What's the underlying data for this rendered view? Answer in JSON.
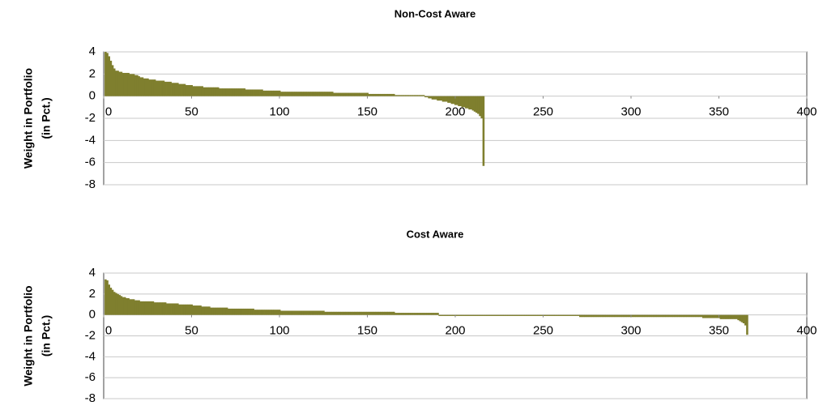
{
  "chart_data": [
    {
      "type": "bar",
      "title": "Non-Cost Aware",
      "ylabel": [
        "Weight in Portfolio",
        "(in Pct.)"
      ],
      "color": "#7f7f2e",
      "grid": true,
      "xlim": [
        0,
        400
      ],
      "xticks": [
        0,
        50,
        100,
        150,
        200,
        250,
        300,
        350,
        400
      ],
      "ylim": [
        -8,
        4
      ],
      "yticks": [
        -8,
        -6,
        -4,
        -2,
        0,
        2,
        4
      ],
      "x": [
        1,
        2,
        3,
        4,
        5,
        6,
        7,
        8,
        9,
        10,
        11,
        12,
        13,
        14,
        15,
        16,
        17,
        18,
        19,
        20,
        21,
        22,
        23,
        24,
        25,
        26,
        27,
        28,
        29,
        30,
        31,
        32,
        33,
        34,
        35,
        36,
        37,
        38,
        39,
        40,
        41,
        42,
        43,
        44,
        45,
        46,
        47,
        48,
        49,
        50,
        51,
        52,
        53,
        54,
        55,
        56,
        57,
        58,
        59,
        60,
        61,
        62,
        63,
        64,
        65,
        66,
        67,
        68,
        69,
        70,
        71,
        72,
        73,
        74,
        75,
        76,
        77,
        78,
        79,
        80,
        81,
        82,
        83,
        84,
        85,
        86,
        87,
        88,
        89,
        90,
        91,
        92,
        93,
        94,
        95,
        96,
        97,
        98,
        99,
        100,
        101,
        102,
        103,
        104,
        105,
        106,
        107,
        108,
        109,
        110,
        111,
        112,
        113,
        114,
        115,
        116,
        117,
        118,
        119,
        120,
        121,
        122,
        123,
        124,
        125,
        126,
        127,
        128,
        129,
        130,
        131,
        132,
        133,
        134,
        135,
        136,
        137,
        138,
        139,
        140,
        141,
        142,
        143,
        144,
        145,
        146,
        147,
        148,
        149,
        150,
        151,
        152,
        153,
        154,
        155,
        156,
        157,
        158,
        159,
        160,
        161,
        162,
        163,
        164,
        165,
        166,
        167,
        168,
        169,
        170,
        171,
        172,
        173,
        174,
        175,
        176,
        177,
        178,
        179,
        180,
        181,
        182,
        183,
        184,
        185,
        186,
        187,
        188,
        189,
        190,
        191,
        192,
        193,
        194,
        195,
        196,
        197,
        198,
        199,
        200,
        201,
        202,
        203,
        204,
        205,
        206,
        207,
        208,
        209,
        210,
        211,
        212,
        213,
        214,
        215,
        216
      ],
      "values": [
        4,
        3.9,
        3.6,
        3.2,
        2.8,
        2.5,
        2.3,
        2.3,
        2.2,
        2.2,
        2.1,
        2.1,
        2.1,
        2.1,
        2,
        2,
        2,
        1.9,
        1.9,
        1.8,
        1.7,
        1.7,
        1.6,
        1.6,
        1.6,
        1.5,
        1.5,
        1.5,
        1.5,
        1.4,
        1.4,
        1.4,
        1.4,
        1.4,
        1.3,
        1.3,
        1.3,
        1.3,
        1.2,
        1.2,
        1.2,
        1.2,
        1.1,
        1.1,
        1.1,
        1.1,
        1,
        1,
        1,
        1,
        0.9,
        0.9,
        0.9,
        0.9,
        0.9,
        0.9,
        0.8,
        0.8,
        0.8,
        0.8,
        0.8,
        0.8,
        0.8,
        0.8,
        0.8,
        0.7,
        0.7,
        0.7,
        0.7,
        0.7,
        0.7,
        0.7,
        0.7,
        0.7,
        0.7,
        0.7,
        0.7,
        0.7,
        0.7,
        0.7,
        0.6,
        0.6,
        0.6,
        0.6,
        0.6,
        0.6,
        0.6,
        0.6,
        0.6,
        0.6,
        0.5,
        0.5,
        0.5,
        0.5,
        0.5,
        0.5,
        0.5,
        0.5,
        0.5,
        0.5,
        0.4,
        0.4,
        0.4,
        0.4,
        0.4,
        0.4,
        0.4,
        0.4,
        0.4,
        0.4,
        0.4,
        0.4,
        0.4,
        0.4,
        0.4,
        0.4,
        0.4,
        0.4,
        0.4,
        0.4,
        0.4,
        0.4,
        0.4,
        0.4,
        0.4,
        0.4,
        0.4,
        0.4,
        0.4,
        0.4,
        0.3,
        0.3,
        0.3,
        0.3,
        0.3,
        0.3,
        0.3,
        0.3,
        0.3,
        0.3,
        0.3,
        0.3,
        0.3,
        0.3,
        0.3,
        0.3,
        0.3,
        0.3,
        0.3,
        0.3,
        0.2,
        0.2,
        0.2,
        0.2,
        0.2,
        0.2,
        0.2,
        0.2,
        0.2,
        0.2,
        0.2,
        0.2,
        0.2,
        0.2,
        0.2,
        0.1,
        0.1,
        0.1,
        0.1,
        0.1,
        0.1,
        0.1,
        0.1,
        0.1,
        0.1,
        0.1,
        0.1,
        0.1,
        0.1,
        0.1,
        0.1,
        0.1,
        -0.1,
        -0.1,
        -0.2,
        -0.2,
        -0.3,
        -0.3,
        -0.3,
        -0.4,
        -0.4,
        -0.4,
        -0.5,
        -0.5,
        -0.5,
        -0.6,
        -0.6,
        -0.7,
        -0.7,
        -0.8,
        -0.8,
        -0.9,
        -0.9,
        -1,
        -1,
        -1.1,
        -1.1,
        -1.2,
        -1.2,
        -1.3,
        -1.4,
        -1.5,
        -1.6,
        -1.8,
        -2,
        -6.3
      ]
    },
    {
      "type": "bar",
      "title": "Cost Aware",
      "ylabel": [
        "Weight in Portfolio",
        "(in Pct.)"
      ],
      "color": "#7f7f2e",
      "grid": true,
      "xlim": [
        0,
        400
      ],
      "xticks": [
        0,
        50,
        100,
        150,
        200,
        250,
        300,
        350,
        400
      ],
      "ylim": [
        -8,
        4
      ],
      "yticks": [
        -8,
        -6,
        -4,
        -2,
        0,
        2,
        4
      ],
      "x": [
        1,
        2,
        3,
        4,
        5,
        6,
        7,
        8,
        9,
        10,
        11,
        12,
        13,
        14,
        15,
        16,
        17,
        18,
        19,
        20,
        21,
        22,
        23,
        24,
        25,
        26,
        27,
        28,
        29,
        30,
        31,
        32,
        33,
        34,
        35,
        36,
        37,
        38,
        39,
        40,
        41,
        42,
        43,
        44,
        45,
        46,
        47,
        48,
        49,
        50,
        51,
        52,
        53,
        54,
        55,
        56,
        57,
        58,
        59,
        60,
        61,
        62,
        63,
        64,
        65,
        66,
        67,
        68,
        69,
        70,
        71,
        72,
        73,
        74,
        75,
        76,
        77,
        78,
        79,
        80,
        81,
        82,
        83,
        84,
        85,
        86,
        87,
        88,
        89,
        90,
        91,
        92,
        93,
        94,
        95,
        96,
        97,
        98,
        99,
        100,
        101,
        102,
        103,
        104,
        105,
        106,
        107,
        108,
        109,
        110,
        111,
        112,
        113,
        114,
        115,
        116,
        117,
        118,
        119,
        120,
        121,
        122,
        123,
        124,
        125,
        126,
        127,
        128,
        129,
        130,
        131,
        132,
        133,
        134,
        135,
        136,
        137,
        138,
        139,
        140,
        141,
        142,
        143,
        144,
        145,
        146,
        147,
        148,
        149,
        150,
        151,
        152,
        153,
        154,
        155,
        156,
        157,
        158,
        159,
        160,
        161,
        162,
        163,
        164,
        165,
        166,
        167,
        168,
        169,
        170,
        171,
        172,
        173,
        174,
        175,
        176,
        177,
        178,
        179,
        180,
        181,
        182,
        183,
        184,
        185,
        186,
        187,
        188,
        189,
        190,
        191,
        192,
        193,
        194,
        195,
        196,
        197,
        198,
        199,
        200,
        201,
        202,
        203,
        204,
        205,
        206,
        207,
        208,
        209,
        210,
        211,
        212,
        213,
        214,
        215,
        216,
        217,
        218,
        219,
        220,
        221,
        222,
        223,
        224,
        225,
        226,
        227,
        228,
        229,
        230,
        231,
        232,
        233,
        234,
        235,
        236,
        237,
        238,
        239,
        240,
        241,
        242,
        243,
        244,
        245,
        246,
        247,
        248,
        249,
        250,
        251,
        252,
        253,
        254,
        255,
        256,
        257,
        258,
        259,
        260,
        261,
        262,
        263,
        264,
        265,
        266,
        267,
        268,
        269,
        270,
        271,
        272,
        273,
        274,
        275,
        276,
        277,
        278,
        279,
        280,
        281,
        282,
        283,
        284,
        285,
        286,
        287,
        288,
        289,
        290,
        291,
        292,
        293,
        294,
        295,
        296,
        297,
        298,
        299,
        300,
        301,
        302,
        303,
        304,
        305,
        306,
        307,
        308,
        309,
        310,
        311,
        312,
        313,
        314,
        315,
        316,
        317,
        318,
        319,
        320,
        321,
        322,
        323,
        324,
        325,
        326,
        327,
        328,
        329,
        330,
        331,
        332,
        333,
        334,
        335,
        336,
        337,
        338,
        339,
        340,
        341,
        342,
        343,
        344,
        345,
        346,
        347,
        348,
        349,
        350,
        351,
        352,
        353,
        354,
        355,
        356,
        357,
        358,
        359,
        360,
        361,
        362,
        363,
        364,
        365,
        366
      ],
      "values": [
        3.4,
        3.3,
        2.9,
        2.6,
        2.4,
        2.2,
        2.1,
        2,
        1.9,
        1.8,
        1.7,
        1.7,
        1.6,
        1.6,
        1.5,
        1.5,
        1.5,
        1.4,
        1.4,
        1.4,
        1.3,
        1.3,
        1.3,
        1.3,
        1.3,
        1.3,
        1.3,
        1.3,
        1.2,
        1.2,
        1.2,
        1.2,
        1.2,
        1.2,
        1.2,
        1.1,
        1.1,
        1.1,
        1.1,
        1.1,
        1.1,
        1.1,
        1,
        1,
        1,
        1,
        1,
        1,
        1,
        1,
        0.9,
        0.9,
        0.9,
        0.9,
        0.9,
        0.8,
        0.8,
        0.8,
        0.8,
        0.8,
        0.7,
        0.7,
        0.7,
        0.7,
        0.7,
        0.7,
        0.7,
        0.7,
        0.7,
        0.7,
        0.6,
        0.6,
        0.6,
        0.6,
        0.6,
        0.6,
        0.6,
        0.6,
        0.6,
        0.6,
        0.6,
        0.6,
        0.6,
        0.6,
        0.6,
        0.5,
        0.5,
        0.5,
        0.5,
        0.5,
        0.5,
        0.5,
        0.5,
        0.5,
        0.5,
        0.5,
        0.5,
        0.5,
        0.5,
        0.5,
        0.4,
        0.4,
        0.4,
        0.4,
        0.4,
        0.4,
        0.4,
        0.4,
        0.4,
        0.4,
        0.4,
        0.4,
        0.4,
        0.4,
        0.4,
        0.4,
        0.4,
        0.4,
        0.4,
        0.4,
        0.4,
        0.4,
        0.4,
        0.4,
        0.4,
        0.3,
        0.3,
        0.3,
        0.3,
        0.3,
        0.3,
        0.3,
        0.3,
        0.3,
        0.3,
        0.3,
        0.3,
        0.3,
        0.3,
        0.3,
        0.3,
        0.3,
        0.3,
        0.3,
        0.3,
        0.3,
        0.3,
        0.3,
        0.3,
        0.3,
        0.3,
        0.3,
        0.3,
        0.3,
        0.3,
        0.3,
        0.3,
        0.3,
        0.3,
        0.3,
        0.3,
        0.3,
        0.3,
        0.3,
        0.3,
        0.2,
        0.2,
        0.2,
        0.2,
        0.2,
        0.2,
        0.2,
        0.2,
        0.2,
        0.2,
        0.2,
        0.2,
        0.2,
        0.2,
        0.2,
        0.2,
        0.2,
        0.2,
        0.2,
        0.2,
        0.2,
        0.2,
        0.2,
        0.2,
        0.2,
        -0.1,
        -0.1,
        -0.1,
        -0.1,
        -0.1,
        -0.1,
        -0.1,
        -0.1,
        -0.1,
        -0.1,
        -0.1,
        -0.1,
        -0.1,
        -0.1,
        -0.1,
        -0.1,
        -0.1,
        -0.1,
        -0.1,
        -0.1,
        -0.1,
        -0.1,
        -0.1,
        -0.1,
        -0.1,
        -0.1,
        -0.1,
        -0.1,
        -0.1,
        -0.1,
        -0.1,
        -0.1,
        -0.1,
        -0.1,
        -0.1,
        -0.1,
        -0.1,
        -0.1,
        -0.1,
        -0.1,
        -0.1,
        -0.1,
        -0.1,
        -0.1,
        -0.1,
        -0.1,
        -0.1,
        -0.1,
        -0.1,
        -0.1,
        -0.1,
        -0.1,
        -0.1,
        -0.1,
        -0.1,
        -0.1,
        -0.1,
        -0.1,
        -0.1,
        -0.1,
        -0.1,
        -0.1,
        -0.1,
        -0.1,
        -0.1,
        -0.1,
        -0.1,
        -0.1,
        -0.1,
        -0.1,
        -0.1,
        -0.1,
        -0.1,
        -0.1,
        -0.1,
        -0.1,
        -0.1,
        -0.1,
        -0.1,
        -0.1,
        -0.2,
        -0.2,
        -0.2,
        -0.2,
        -0.2,
        -0.2,
        -0.2,
        -0.2,
        -0.2,
        -0.2,
        -0.2,
        -0.2,
        -0.2,
        -0.2,
        -0.2,
        -0.2,
        -0.2,
        -0.2,
        -0.2,
        -0.2,
        -0.2,
        -0.2,
        -0.2,
        -0.2,
        -0.2,
        -0.2,
        -0.2,
        -0.2,
        -0.2,
        -0.2,
        -0.2,
        -0.2,
        -0.2,
        -0.2,
        -0.2,
        -0.2,
        -0.2,
        -0.2,
        -0.2,
        -0.2,
        -0.2,
        -0.2,
        -0.2,
        -0.2,
        -0.2,
        -0.2,
        -0.2,
        -0.2,
        -0.2,
        -0.2,
        -0.2,
        -0.2,
        -0.2,
        -0.2,
        -0.2,
        -0.2,
        -0.2,
        -0.2,
        -0.2,
        -0.2,
        -0.2,
        -0.2,
        -0.2,
        -0.2,
        -0.2,
        -0.2,
        -0.2,
        -0.2,
        -0.2,
        -0.2,
        -0.3,
        -0.3,
        -0.3,
        -0.3,
        -0.3,
        -0.3,
        -0.3,
        -0.3,
        -0.3,
        -0.3,
        -0.4,
        -0.4,
        -0.4,
        -0.4,
        -0.4,
        -0.4,
        -0.4,
        -0.4,
        -0.4,
        -0.4,
        -0.5,
        -0.6,
        -0.7,
        -0.8,
        -1,
        -1.9
      ]
    }
  ]
}
